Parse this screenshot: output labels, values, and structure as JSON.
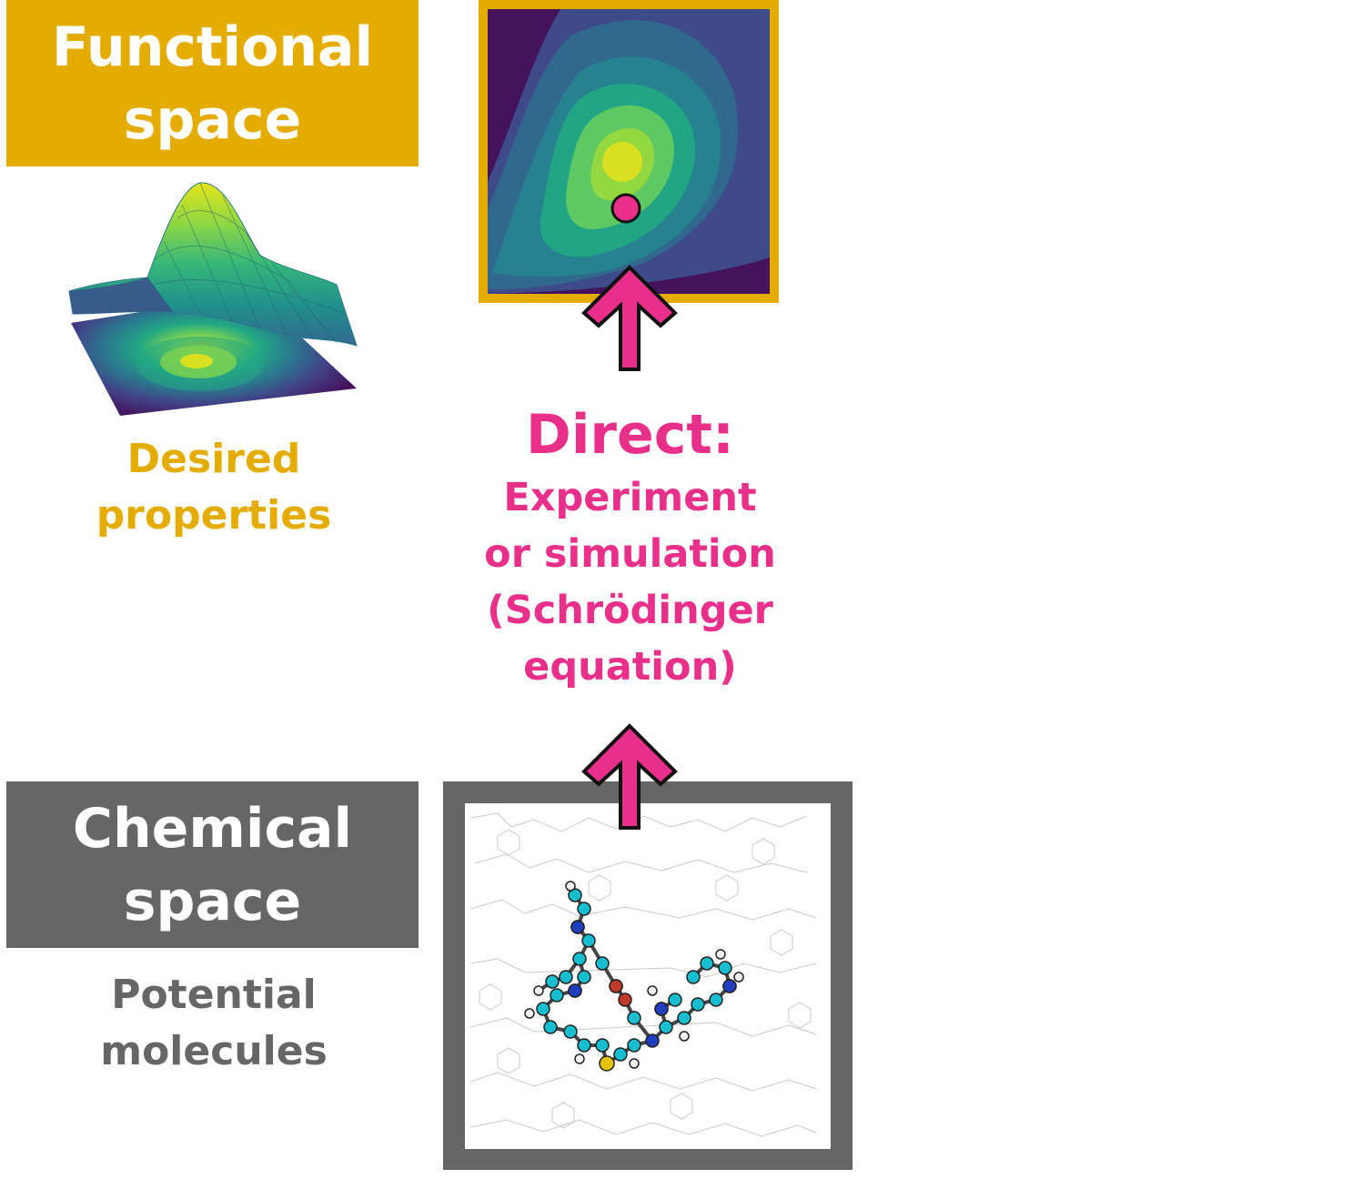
{
  "colors": {
    "functional": "#E5AC00",
    "chemical": "#666666",
    "direct": "#E8308A",
    "viridis_dark": "#44135C",
    "viridis_bright": "#D9E021"
  },
  "functional_space": {
    "title_line1": "Functional",
    "title_line2": "space",
    "caption_line1": "Desired",
    "caption_line2": "properties"
  },
  "chemical_space": {
    "title_line1": "Chemical",
    "title_line2": "space",
    "caption_line1": "Potential",
    "caption_line2": "molecules"
  },
  "direct": {
    "heading": "Direct:",
    "line1": "Experiment",
    "line2": "or simulation",
    "line3": "(Schrödinger",
    "line4": "equation)"
  },
  "icons": {
    "surface": "3d-surface-plot-icon",
    "contour": "contour-map-icon",
    "arrow": "up-arrow-icon",
    "molecule": "molecule-icon"
  }
}
